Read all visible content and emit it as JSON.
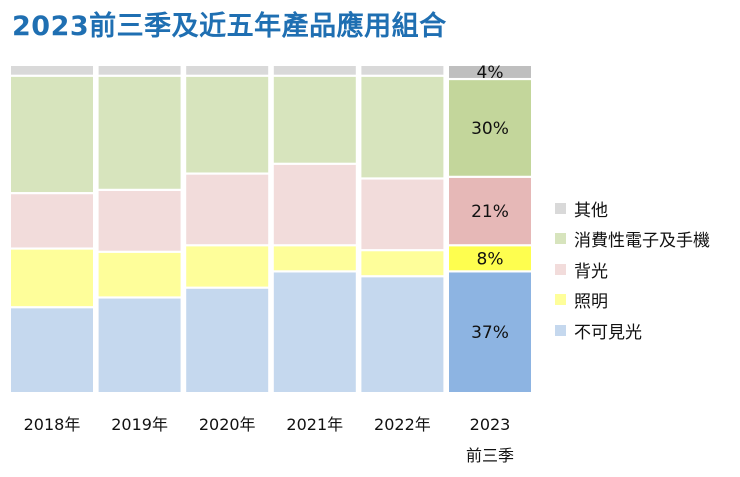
{
  "chart_data": {
    "type": "stacked-bar-100",
    "title": "2023前三季及近五年產品應用組合",
    "categories": [
      {
        "line1": "2018年",
        "line2": ""
      },
      {
        "line1": "2019年",
        "line2": ""
      },
      {
        "line1": "2020年",
        "line2": ""
      },
      {
        "line1": "2021年",
        "line2": ""
      },
      {
        "line1": "2022年",
        "line2": ""
      },
      {
        "line1": "2023",
        "line2": "前三季"
      }
    ],
    "series": [
      {
        "name": "不可見光",
        "color": "#c5d8ee",
        "highlight_color": "#8db4e2",
        "values": [
          26,
          29,
          32,
          37,
          35.5,
          37
        ]
      },
      {
        "name": "照明",
        "color": "#fefe9a",
        "highlight_color": "#fefe4f",
        "values": [
          18,
          14,
          13,
          8,
          8,
          8
        ]
      },
      {
        "name": "背光",
        "color": "#f2dcdb",
        "highlight_color": "#e6b8b7",
        "values": [
          17,
          19,
          22,
          25,
          22,
          21
        ]
      },
      {
        "name": "消費性電子及手機",
        "color": "#d7e4bd",
        "highlight_color": "#c3d69b",
        "values": [
          36,
          35,
          30,
          27,
          31.5,
          30
        ]
      },
      {
        "name": "其他",
        "color": "#d9d9d9",
        "highlight_color": "#bfbfbf",
        "values": [
          3,
          3,
          3,
          3,
          3,
          4
        ]
      }
    ],
    "highlight_category_index": 5,
    "data_labels": [
      "37%",
      "8%",
      "21%",
      "30%",
      "4%"
    ],
    "ylim": [
      0,
      100
    ]
  }
}
